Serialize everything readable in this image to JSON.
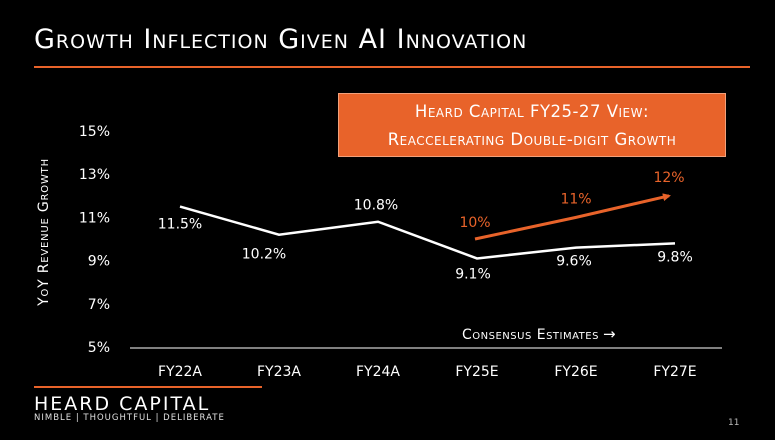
{
  "slide": {
    "title": "Growth Inflection Given AI Innovation",
    "callout_line1": "Heard Capital FY25-27 View:",
    "callout_line2": "Reaccelerating Double-digit Growth",
    "consensus_label": "Consensus Estimates",
    "consensus_arrow": "→",
    "brand": "HEARD CAPITAL",
    "tagline": "NIMBLE | THOUGHTFUL | DELIBERATE",
    "page_number": "11"
  },
  "colors": {
    "background": "#000000",
    "accent": "#e8632a",
    "line": "#ffffff",
    "text": "#ffffff"
  },
  "chart_data": {
    "type": "line",
    "ylabel": "YoY Revenue Growth",
    "xlabel": "",
    "categories": [
      "FY22A",
      "FY23A",
      "FY24A",
      "FY25E",
      "FY26E",
      "FY27E"
    ],
    "y_ticks": [
      "5%",
      "7%",
      "9%",
      "11%",
      "13%",
      "15%"
    ],
    "ylim": [
      5,
      15
    ],
    "grid": false,
    "series": [
      {
        "values": [
          11.5,
          10.2,
          10.8,
          9.1,
          9.6,
          9.8
        ],
        "labels": [
          "11.5%",
          "10.2%",
          "10.8%",
          "9.1%",
          "9.6%",
          "9.8%"
        ],
        "color": "#ffffff"
      },
      {
        "x": [
          "FY25E",
          "FY26E",
          "FY27E"
        ],
        "values": [
          10,
          11,
          12
        ],
        "labels": [
          "10%",
          "11%",
          "12%"
        ],
        "color": "#e8632a",
        "arrow": true
      }
    ]
  }
}
